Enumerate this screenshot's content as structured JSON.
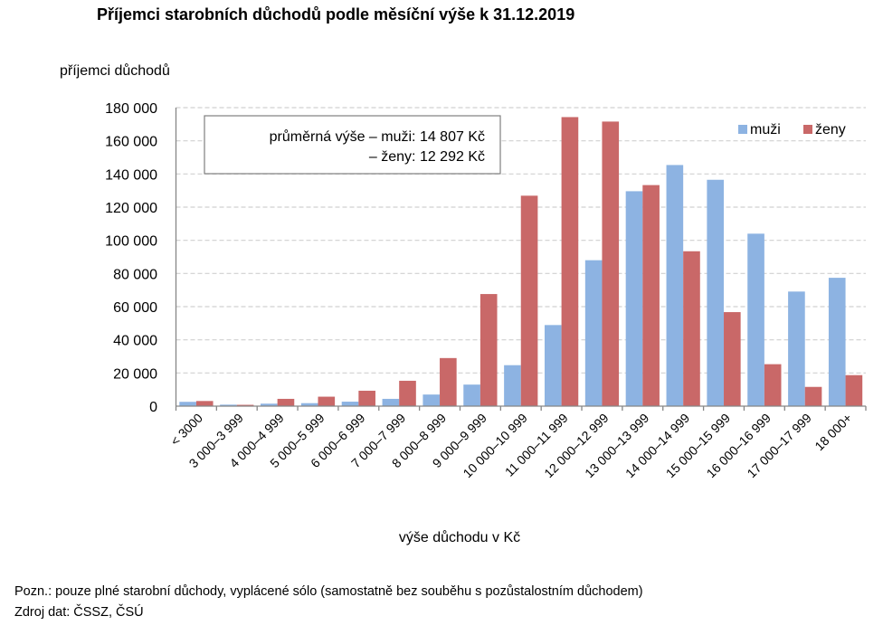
{
  "chart_data": {
    "type": "bar",
    "title": "Příjemci starobních důchodů podle měsíční výše k 31.12.2019",
    "ylabel": "příjemci důchodů",
    "xlabel": "výše důchodu v Kč",
    "ylim": [
      0,
      180000
    ],
    "yticks": [
      0,
      20000,
      40000,
      60000,
      80000,
      100000,
      120000,
      140000,
      160000,
      180000
    ],
    "ytick_labels": [
      "0",
      "20 000",
      "40 000",
      "60 000",
      "80 000",
      "100 000",
      "120 000",
      "140 000",
      "160 000",
      "180 000"
    ],
    "grid": true,
    "legend_position": "top-right",
    "categories": [
      "< 3000",
      "3 000–3 999",
      "4 000–4 999",
      "5 000–5 999",
      "6 000–6 999",
      "7 000–7 999",
      "8 000–8 999",
      "9 000–9 999",
      "10 000–10 999",
      "11 000–11 999",
      "12 000–12 999",
      "13 000–13 999",
      "14 000–14 999",
      "15 000–15 999",
      "16 000–16 999",
      "17 000–17 999",
      "18 000+"
    ],
    "series": [
      {
        "name": "muži",
        "color": "#8db3e2",
        "values": [
          2600,
          900,
          1500,
          1800,
          2700,
          4400,
          7000,
          13000,
          24700,
          48900,
          88000,
          129600,
          145400,
          136500,
          104000,
          69100,
          77400
        ]
      },
      {
        "name": "ženy",
        "color": "#c96868",
        "values": [
          3100,
          800,
          4400,
          5700,
          9300,
          15300,
          29000,
          67600,
          126900,
          174300,
          171600,
          133300,
          93400,
          56700,
          25300,
          11600,
          18700
        ]
      }
    ],
    "annotation": {
      "line1": "průměrná výše – muži: 14 807 Kč",
      "line2": "– ženy: 12 292 Kč"
    }
  },
  "footer": {
    "note": "Pozn.: pouze plné  starobní důchody, vyplácené sólo (samostatně bez souběhu s pozůstalostním důchodem)",
    "source": "Zdroj dat: ČSSZ, ČSÚ"
  }
}
